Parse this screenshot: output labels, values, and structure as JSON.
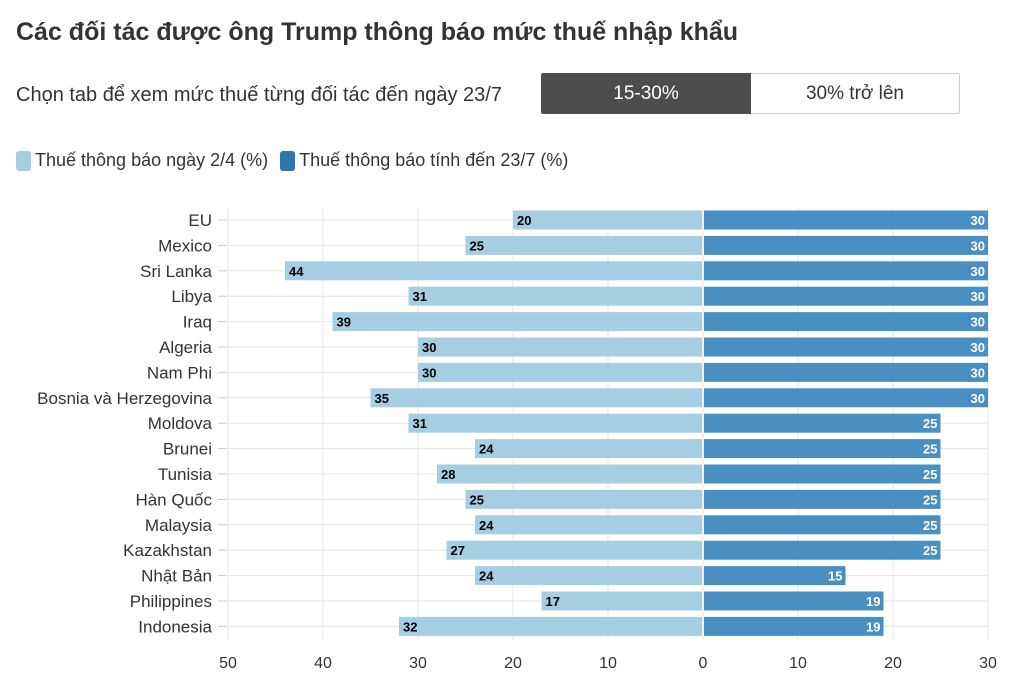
{
  "header": {
    "title": "Các đối tác được ông Trump thông báo mức thuế nhập khẩu",
    "subtitle": "Chọn tab để xem mức thuế từng đối tác đến ngày 23/7"
  },
  "tabs": [
    {
      "label": "15-30%",
      "active": true
    },
    {
      "label": "30% trở lên",
      "active": false
    }
  ],
  "colors": {
    "series_before": "#a6cee3",
    "series_after": "#4a8fc2",
    "tab_active": "#4d4d4d",
    "gridline": "#e6e6e6"
  },
  "chart_data": {
    "type": "bar",
    "orientation": "horizontal-diverging",
    "categories": [
      "EU",
      "Mexico",
      "Sri Lanka",
      "Libya",
      "Iraq",
      "Algeria",
      "Nam Phi",
      "Bosnia và Herzegovina",
      "Moldova",
      "Brunei",
      "Tunisia",
      "Hàn Quốc",
      "Malaysia",
      "Kazakhstan",
      "Nhật Bản",
      "Philippines",
      "Indonesia"
    ],
    "series": [
      {
        "name": "Thuế thông báo ngày 2/4 (%)",
        "side": "left",
        "values": [
          20,
          25,
          44,
          31,
          39,
          30,
          30,
          35,
          31,
          24,
          28,
          25,
          24,
          27,
          24,
          17,
          32
        ]
      },
      {
        "name": "Thuế thông báo tính đến 23/7 (%)",
        "side": "right",
        "values": [
          30,
          30,
          30,
          30,
          30,
          30,
          30,
          30,
          25,
          25,
          25,
          25,
          25,
          25,
          15,
          19,
          19
        ]
      }
    ],
    "xlim_left": [
      0,
      50
    ],
    "xlim_right": [
      0,
      30
    ],
    "x_ticks": [
      "50",
      "40",
      "30",
      "20",
      "10",
      "0",
      "10",
      "20",
      "30"
    ],
    "x_tick_values": [
      -50,
      -40,
      -30,
      -20,
      -10,
      0,
      10,
      20,
      30
    ],
    "grid": true,
    "legend_position": "top-left"
  }
}
